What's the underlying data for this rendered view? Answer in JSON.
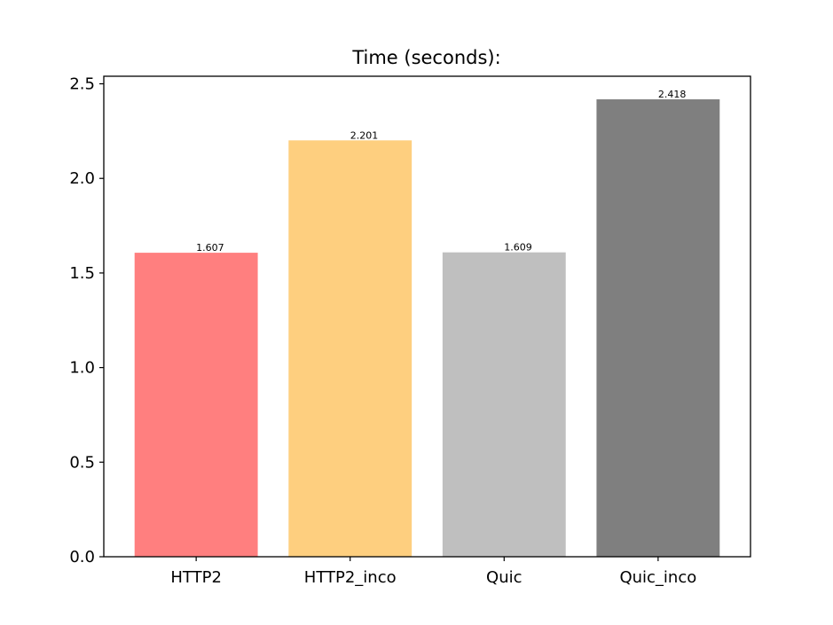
{
  "chart_data": {
    "type": "bar",
    "title": "Time (seconds):",
    "xlabel": "",
    "ylabel": "",
    "categories": [
      "HTTP2",
      "HTTP2_inco",
      "Quic",
      "Quic_inco"
    ],
    "values": [
      1.607,
      2.201,
      1.609,
      2.418
    ],
    "value_labels": [
      "1.607",
      "2.201",
      "1.609",
      "2.418"
    ],
    "colors": [
      "#ff7f7f",
      "#fecf7f",
      "#bfbfbf",
      "#7f7f7f"
    ],
    "ylim": [
      0,
      2.54
    ],
    "yticks": [
      0.0,
      0.5,
      1.0,
      1.5,
      2.0,
      2.5
    ],
    "ytick_labels": [
      "0.0",
      "0.5",
      "1.0",
      "1.5",
      "2.0",
      "2.5"
    ],
    "grid": false,
    "legend": "none"
  }
}
